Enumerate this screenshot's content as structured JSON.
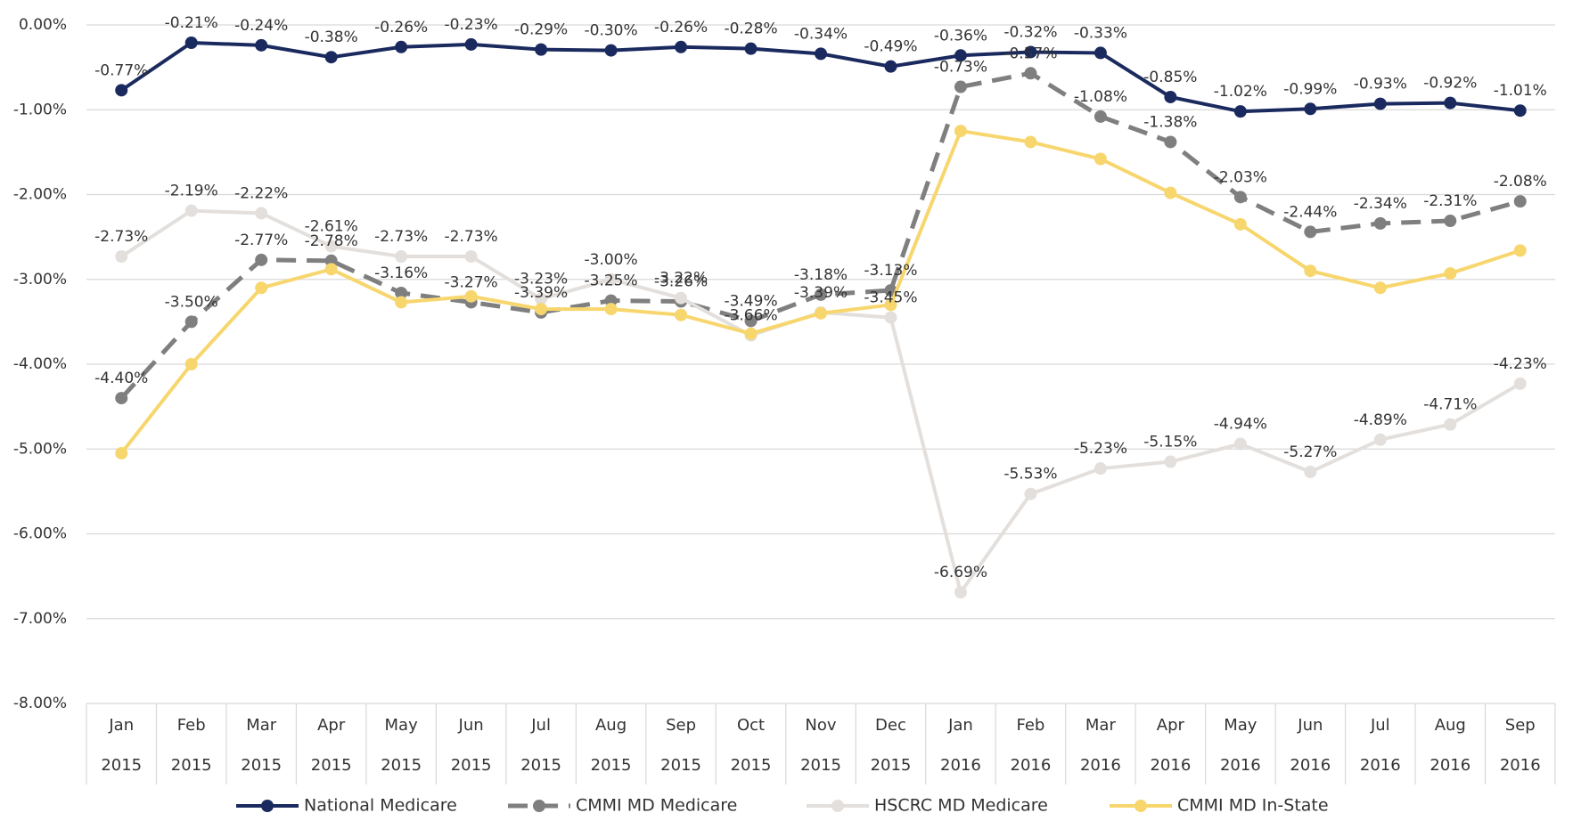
{
  "chart_data": {
    "type": "line",
    "categories": [
      "Jan 2015",
      "Feb 2015",
      "Mar 2015",
      "Apr 2015",
      "May 2015",
      "Jun 2015",
      "Jul 2015",
      "Aug 2015",
      "Sep 2015",
      "Oct 2015",
      "Nov 2015",
      "Dec 2015",
      "Jan 2016",
      "Feb 2016",
      "Mar 2016",
      "Apr 2016",
      "May 2016",
      "Jun 2016",
      "Jul 2016",
      "Aug 2016",
      "Sep 2016"
    ],
    "ylim": [
      -8,
      0
    ],
    "yticks": [
      {
        "value": 0,
        "label": "0.00%"
      },
      {
        "value": -1,
        "label": "-1.00%"
      },
      {
        "value": -2,
        "label": "-2.00%"
      },
      {
        "value": -3,
        "label": "-3.00%"
      },
      {
        "value": -4,
        "label": "-4.00%"
      },
      {
        "value": -5,
        "label": "-5.00%"
      },
      {
        "value": -6,
        "label": "-6.00%"
      },
      {
        "value": -7,
        "label": "-7.00%"
      },
      {
        "value": -8,
        "label": "-8.00%"
      }
    ],
    "grid": true,
    "series": [
      {
        "name": "National Medicare",
        "color": "#1a2a5e",
        "dashed": false,
        "values": [
          -0.77,
          -0.21,
          -0.24,
          -0.38,
          -0.26,
          -0.23,
          -0.29,
          -0.3,
          -0.26,
          -0.28,
          -0.34,
          -0.49,
          -0.36,
          -0.32,
          -0.33,
          -0.85,
          -1.02,
          -0.99,
          -0.93,
          -0.92,
          -1.01
        ],
        "value_labels": [
          "-0.77%",
          "-0.21%",
          "-0.24%",
          "-0.38%",
          "-0.26%",
          "-0.23%",
          "-0.29%",
          "-0.30%",
          "-0.26%",
          "-0.28%",
          "-0.34%",
          "-0.49%",
          "-0.36%",
          "-0.32%",
          "-0.33%",
          "-0.85%",
          "-1.02%",
          "-0.99%",
          "-0.93%",
          "-0.92%",
          "-1.01%"
        ]
      },
      {
        "name": "CMMI MD Medicare",
        "color": "#7f7f7f",
        "dashed": true,
        "values": [
          -4.4,
          -3.5,
          -2.77,
          -2.78,
          -3.16,
          -3.27,
          -3.39,
          -3.25,
          -3.26,
          -3.49,
          -3.18,
          -3.13,
          -0.73,
          -0.57,
          -1.08,
          -1.38,
          -2.03,
          -2.44,
          -2.34,
          -2.31,
          -2.08
        ],
        "value_labels": [
          "-4.40%",
          "-3.50%",
          "-2.77%",
          "-2.78%",
          "-3.16%",
          "-3.27%",
          "-3.39%",
          "-3.25%",
          "-3.26%",
          "-3.49%",
          "-3.18%",
          "-3.13%",
          "-0.73%",
          "-0.57%",
          "-1.08%",
          "-1.38%",
          "-2.03%",
          "-2.44%",
          "-2.34%",
          "-2.31%",
          "-2.08%"
        ]
      },
      {
        "name": "HSCRC MD Medicare",
        "color": "#e3dfdc",
        "dashed": false,
        "values": [
          -2.73,
          -2.19,
          -2.22,
          -2.61,
          -2.73,
          -2.73,
          -3.23,
          -3.0,
          -3.22,
          -3.66,
          -3.39,
          -3.45,
          -6.69,
          -5.53,
          -5.23,
          -5.15,
          -4.94,
          -5.27,
          -4.89,
          -4.71,
          -4.23
        ],
        "value_labels": [
          "-2.73%",
          "-2.19%",
          "-2.22%",
          "-2.61%",
          "-2.73%",
          "-2.73%",
          "-3.23%",
          "-3.00%",
          "-3.22%",
          "-3.66%",
          "-3.39%",
          "-3.45%",
          "-6.69%",
          "-5.53%",
          "-5.23%",
          "-5.15%",
          "-4.94%",
          "-5.27%",
          "-4.89%",
          "-4.71%",
          "-4.23%"
        ]
      },
      {
        "name": "CMMI MD In-State",
        "color": "#f7d66e",
        "dashed": false,
        "values": [
          -5.05,
          -4.0,
          -3.1,
          -2.88,
          -3.27,
          -3.2,
          -3.35,
          -3.35,
          -3.42,
          -3.64,
          -3.4,
          -3.3,
          -1.25,
          -1.38,
          -1.58,
          -1.98,
          -2.35,
          -2.9,
          -3.1,
          -2.93,
          -2.66
        ]
      }
    ]
  }
}
